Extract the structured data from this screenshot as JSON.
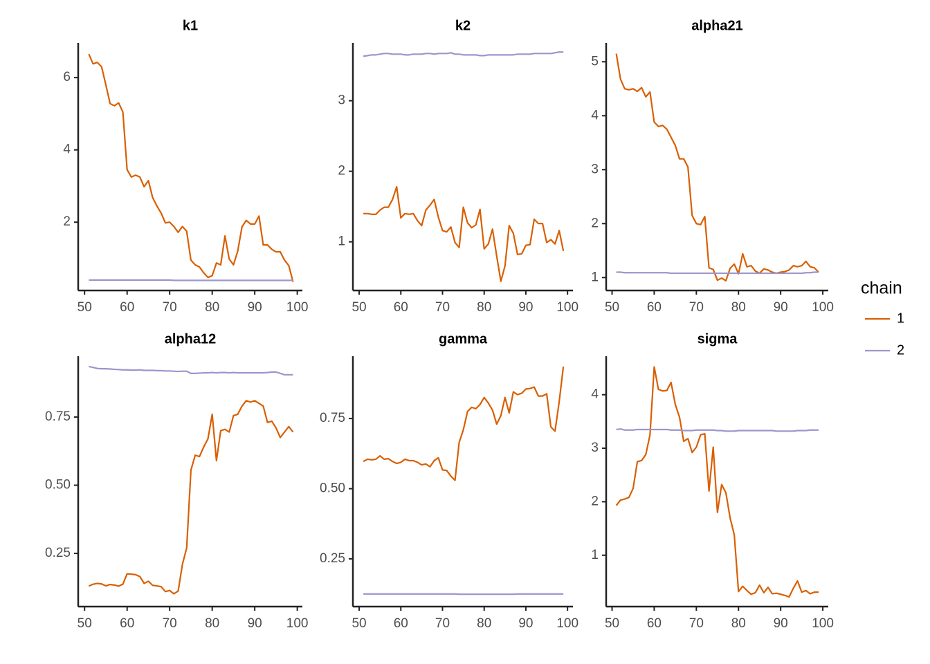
{
  "chart_data": [
    {
      "type": "line",
      "title": "k1",
      "x": [
        51,
        52,
        53,
        54,
        55,
        56,
        57,
        58,
        59,
        60,
        61,
        62,
        63,
        64,
        65,
        66,
        67,
        68,
        69,
        70,
        71,
        72,
        73,
        74,
        75,
        76,
        77,
        78,
        79,
        80,
        81,
        82,
        83,
        84,
        85,
        86,
        87,
        88,
        89,
        90,
        91,
        92,
        93,
        94,
        95,
        96,
        97,
        98,
        99
      ],
      "series": [
        {
          "name": "1",
          "color": "#d95f02",
          "values": [
            6.65,
            6.38,
            6.42,
            6.3,
            5.8,
            5.28,
            5.22,
            5.3,
            5.05,
            3.45,
            3.25,
            3.3,
            3.25,
            2.98,
            3.15,
            2.68,
            2.45,
            2.25,
            1.98,
            2.0,
            1.88,
            1.72,
            1.88,
            1.75,
            0.95,
            0.82,
            0.76,
            0.6,
            0.47,
            0.52,
            0.87,
            0.82,
            1.62,
            0.98,
            0.82,
            1.2,
            1.87,
            2.05,
            1.95,
            1.95,
            2.17,
            1.37,
            1.37,
            1.25,
            1.18,
            1.18,
            0.95,
            0.8,
            0.35
          ]
        },
        {
          "name": "2",
          "color": "#9b96cc",
          "values": [
            0.4,
            0.4,
            0.4,
            0.4,
            0.4,
            0.4,
            0.4,
            0.4,
            0.4,
            0.4,
            0.4,
            0.4,
            0.4,
            0.4,
            0.4,
            0.4,
            0.4,
            0.4,
            0.4,
            0.4,
            0.39,
            0.39,
            0.39,
            0.39,
            0.39,
            0.39,
            0.39,
            0.39,
            0.39,
            0.39,
            0.39,
            0.39,
            0.39,
            0.39,
            0.39,
            0.39,
            0.39,
            0.39,
            0.39,
            0.39,
            0.39,
            0.39,
            0.39,
            0.39,
            0.39,
            0.39,
            0.39,
            0.39,
            0.39
          ]
        }
      ],
      "xlim": [
        48.5,
        101.2
      ],
      "xticks": [
        50,
        60,
        70,
        80,
        90,
        100
      ],
      "ylim": [
        0.11,
        6.96
      ],
      "yticks": [
        2,
        4,
        6
      ]
    },
    {
      "type": "line",
      "title": "k2",
      "x": [
        51,
        52,
        53,
        54,
        55,
        56,
        57,
        58,
        59,
        60,
        61,
        62,
        63,
        64,
        65,
        66,
        67,
        68,
        69,
        70,
        71,
        72,
        73,
        74,
        75,
        76,
        77,
        78,
        79,
        80,
        81,
        82,
        83,
        84,
        85,
        86,
        87,
        88,
        89,
        90,
        91,
        92,
        93,
        94,
        95,
        96,
        97,
        98,
        99
      ],
      "series": [
        {
          "name": "1",
          "color": "#d95f02",
          "values": [
            1.4,
            1.4,
            1.39,
            1.39,
            1.45,
            1.49,
            1.49,
            1.6,
            1.78,
            1.34,
            1.4,
            1.39,
            1.4,
            1.3,
            1.23,
            1.45,
            1.52,
            1.6,
            1.35,
            1.16,
            1.14,
            1.21,
            0.99,
            0.92,
            1.49,
            1.27,
            1.2,
            1.24,
            1.46,
            0.9,
            0.97,
            1.18,
            0.8,
            0.44,
            0.66,
            1.23,
            1.12,
            0.82,
            0.83,
            0.95,
            0.96,
            1.32,
            1.26,
            1.26,
            0.99,
            1.03,
            0.97,
            1.16,
            0.87
          ]
        },
        {
          "name": "2",
          "color": "#9b96cc",
          "values": [
            3.63,
            3.64,
            3.65,
            3.65,
            3.66,
            3.67,
            3.67,
            3.66,
            3.66,
            3.66,
            3.65,
            3.65,
            3.66,
            3.66,
            3.66,
            3.67,
            3.67,
            3.66,
            3.67,
            3.67,
            3.67,
            3.68,
            3.66,
            3.66,
            3.65,
            3.65,
            3.65,
            3.65,
            3.64,
            3.64,
            3.65,
            3.65,
            3.65,
            3.65,
            3.65,
            3.65,
            3.65,
            3.66,
            3.66,
            3.66,
            3.66,
            3.67,
            3.67,
            3.67,
            3.67,
            3.67,
            3.68,
            3.69,
            3.69
          ]
        }
      ],
      "xlim": [
        48.5,
        101.3
      ],
      "xticks": [
        50,
        60,
        70,
        80,
        90,
        100
      ],
      "ylim": [
        0.31,
        3.82
      ],
      "yticks": [
        1,
        2,
        3
      ]
    },
    {
      "type": "line",
      "title": "alpha21",
      "x": [
        51,
        52,
        53,
        54,
        55,
        56,
        57,
        58,
        59,
        60,
        61,
        62,
        63,
        64,
        65,
        66,
        67,
        68,
        69,
        70,
        71,
        72,
        73,
        74,
        75,
        76,
        77,
        78,
        79,
        80,
        81,
        82,
        83,
        84,
        85,
        86,
        87,
        88,
        89,
        90,
        91,
        92,
        93,
        94,
        95,
        96,
        97,
        98,
        99
      ],
      "series": [
        {
          "name": "1",
          "color": "#d95f02",
          "values": [
            5.15,
            4.68,
            4.5,
            4.48,
            4.5,
            4.45,
            4.52,
            4.35,
            4.44,
            3.88,
            3.8,
            3.82,
            3.75,
            3.6,
            3.45,
            3.2,
            3.2,
            3.05,
            2.15,
            2.0,
            1.98,
            2.13,
            1.18,
            1.15,
            0.95,
            0.99,
            0.94,
            1.17,
            1.25,
            1.07,
            1.44,
            1.2,
            1.22,
            1.12,
            1.08,
            1.16,
            1.14,
            1.1,
            1.08,
            1.1,
            1.11,
            1.14,
            1.22,
            1.2,
            1.22,
            1.3,
            1.2,
            1.18,
            1.1
          ]
        },
        {
          "name": "2",
          "color": "#9b96cc",
          "values": [
            1.1,
            1.1,
            1.09,
            1.09,
            1.09,
            1.09,
            1.09,
            1.09,
            1.09,
            1.09,
            1.09,
            1.09,
            1.09,
            1.08,
            1.08,
            1.08,
            1.08,
            1.08,
            1.08,
            1.08,
            1.08,
            1.08,
            1.08,
            1.08,
            1.08,
            1.08,
            1.08,
            1.08,
            1.08,
            1.08,
            1.08,
            1.08,
            1.08,
            1.08,
            1.08,
            1.08,
            1.08,
            1.08,
            1.08,
            1.08,
            1.08,
            1.08,
            1.08,
            1.08,
            1.08,
            1.09,
            1.09,
            1.1,
            1.1
          ]
        }
      ],
      "xlim": [
        48.6,
        101.3
      ],
      "xticks": [
        50,
        60,
        70,
        80,
        90,
        100
      ],
      "ylim": [
        0.76,
        5.35
      ],
      "yticks": [
        1,
        2,
        3,
        4,
        5
      ]
    },
    {
      "type": "line",
      "title": "alpha12",
      "x": [
        51,
        52,
        53,
        54,
        55,
        56,
        57,
        58,
        59,
        60,
        61,
        62,
        63,
        64,
        65,
        66,
        67,
        68,
        69,
        70,
        71,
        72,
        73,
        74,
        75,
        76,
        77,
        78,
        79,
        80,
        81,
        82,
        83,
        84,
        85,
        86,
        87,
        88,
        89,
        90,
        91,
        92,
        93,
        94,
        95,
        96,
        97,
        98,
        99
      ],
      "series": [
        {
          "name": "1",
          "color": "#d95f02",
          "values": [
            0.13,
            0.137,
            0.14,
            0.138,
            0.131,
            0.136,
            0.134,
            0.13,
            0.137,
            0.175,
            0.174,
            0.172,
            0.165,
            0.14,
            0.148,
            0.133,
            0.131,
            0.128,
            0.11,
            0.114,
            0.102,
            0.112,
            0.21,
            0.27,
            0.555,
            0.61,
            0.605,
            0.64,
            0.67,
            0.76,
            0.59,
            0.7,
            0.705,
            0.695,
            0.755,
            0.76,
            0.79,
            0.81,
            0.805,
            0.81,
            0.8,
            0.79,
            0.73,
            0.735,
            0.71,
            0.675,
            0.695,
            0.715,
            0.695
          ]
        },
        {
          "name": "2",
          "color": "#9b96cc",
          "values": [
            0.935,
            0.932,
            0.928,
            0.927,
            0.927,
            0.926,
            0.925,
            0.924,
            0.923,
            0.923,
            0.922,
            0.922,
            0.923,
            0.921,
            0.921,
            0.921,
            0.92,
            0.92,
            0.919,
            0.919,
            0.918,
            0.917,
            0.918,
            0.918,
            0.91,
            0.91,
            0.911,
            0.912,
            0.912,
            0.913,
            0.912,
            0.913,
            0.913,
            0.912,
            0.913,
            0.912,
            0.912,
            0.912,
            0.912,
            0.912,
            0.912,
            0.912,
            0.913,
            0.915,
            0.915,
            0.91,
            0.905,
            0.905,
            0.905
          ]
        }
      ],
      "xlim": [
        48.5,
        101.2
      ],
      "xticks": [
        50,
        60,
        70,
        80,
        90,
        100
      ],
      "ylim": [
        0.055,
        0.973
      ],
      "yticks": [
        {
          "value": 0.25,
          "label": "0.25"
        },
        {
          "value": 0.5,
          "label": "0.50"
        },
        {
          "value": 0.75,
          "label": "0.75"
        }
      ]
    },
    {
      "type": "line",
      "title": "gamma",
      "x": [
        51,
        52,
        53,
        54,
        55,
        56,
        57,
        58,
        59,
        60,
        61,
        62,
        63,
        64,
        65,
        66,
        67,
        68,
        69,
        70,
        71,
        72,
        73,
        74,
        75,
        76,
        77,
        78,
        79,
        80,
        81,
        82,
        83,
        84,
        85,
        86,
        87,
        88,
        89,
        90,
        91,
        92,
        93,
        94,
        95,
        96,
        97,
        98,
        99
      ],
      "series": [
        {
          "name": "1",
          "color": "#d95f02",
          "values": [
            0.597,
            0.605,
            0.603,
            0.605,
            0.617,
            0.605,
            0.607,
            0.597,
            0.59,
            0.594,
            0.605,
            0.6,
            0.6,
            0.594,
            0.585,
            0.588,
            0.578,
            0.6,
            0.61,
            0.567,
            0.565,
            0.545,
            0.53,
            0.665,
            0.71,
            0.775,
            0.79,
            0.785,
            0.8,
            0.825,
            0.805,
            0.78,
            0.73,
            0.76,
            0.825,
            0.77,
            0.845,
            0.835,
            0.84,
            0.855,
            0.857,
            0.862,
            0.83,
            0.83,
            0.838,
            0.72,
            0.705,
            0.81,
            0.935
          ]
        },
        {
          "name": "2",
          "color": "#9b96cc",
          "values": [
            0.125,
            0.125,
            0.125,
            0.125,
            0.125,
            0.125,
            0.125,
            0.125,
            0.125,
            0.125,
            0.125,
            0.125,
            0.125,
            0.125,
            0.125,
            0.125,
            0.125,
            0.125,
            0.125,
            0.125,
            0.125,
            0.125,
            0.125,
            0.124,
            0.124,
            0.124,
            0.124,
            0.124,
            0.124,
            0.124,
            0.124,
            0.124,
            0.124,
            0.124,
            0.124,
            0.124,
            0.124,
            0.125,
            0.125,
            0.125,
            0.125,
            0.125,
            0.125,
            0.125,
            0.125,
            0.125,
            0.125,
            0.125,
            0.125
          ]
        }
      ],
      "xlim": [
        48.5,
        101.3
      ],
      "xticks": [
        50,
        60,
        70,
        80,
        90,
        100
      ],
      "ylim": [
        0.08,
        0.972
      ],
      "yticks": [
        {
          "value": 0.25,
          "label": "0.25"
        },
        {
          "value": 0.5,
          "label": "0.50"
        },
        {
          "value": 0.75,
          "label": "0.75"
        }
      ]
    },
    {
      "type": "line",
      "title": "sigma",
      "x": [
        51,
        52,
        53,
        54,
        55,
        56,
        57,
        58,
        59,
        60,
        61,
        62,
        63,
        64,
        65,
        66,
        67,
        68,
        69,
        70,
        71,
        72,
        73,
        74,
        75,
        76,
        77,
        78,
        79,
        80,
        81,
        82,
        83,
        84,
        85,
        86,
        87,
        88,
        89,
        90,
        91,
        92,
        93,
        94,
        95,
        96,
        97,
        98,
        99
      ],
      "series": [
        {
          "name": "1",
          "color": "#d95f02",
          "values": [
            1.93,
            2.03,
            2.05,
            2.08,
            2.25,
            2.75,
            2.77,
            2.88,
            3.25,
            4.52,
            4.1,
            4.07,
            4.08,
            4.23,
            3.82,
            3.58,
            3.13,
            3.18,
            2.92,
            3.02,
            3.25,
            3.27,
            2.2,
            3.02,
            1.8,
            2.32,
            2.17,
            1.7,
            1.38,
            0.32,
            0.42,
            0.34,
            0.27,
            0.3,
            0.44,
            0.3,
            0.4,
            0.28,
            0.29,
            0.27,
            0.25,
            0.22,
            0.38,
            0.52,
            0.31,
            0.34,
            0.28,
            0.31,
            0.31
          ]
        },
        {
          "name": "2",
          "color": "#9b96cc",
          "values": [
            3.35,
            3.36,
            3.34,
            3.34,
            3.34,
            3.35,
            3.35,
            3.35,
            3.35,
            3.35,
            3.35,
            3.35,
            3.35,
            3.34,
            3.34,
            3.34,
            3.33,
            3.33,
            3.33,
            3.34,
            3.34,
            3.34,
            3.34,
            3.34,
            3.33,
            3.33,
            3.32,
            3.32,
            3.32,
            3.33,
            3.33,
            3.33,
            3.33,
            3.33,
            3.33,
            3.33,
            3.33,
            3.33,
            3.32,
            3.32,
            3.32,
            3.32,
            3.32,
            3.33,
            3.33,
            3.33,
            3.34,
            3.34,
            3.34
          ]
        }
      ],
      "xlim": [
        48.6,
        101.3
      ],
      "xticks": [
        50,
        60,
        70,
        80,
        90,
        100
      ],
      "ylim": [
        0.04,
        4.72
      ],
      "yticks": [
        1,
        2,
        3,
        4
      ]
    }
  ],
  "legend": {
    "title": "chain"
  }
}
